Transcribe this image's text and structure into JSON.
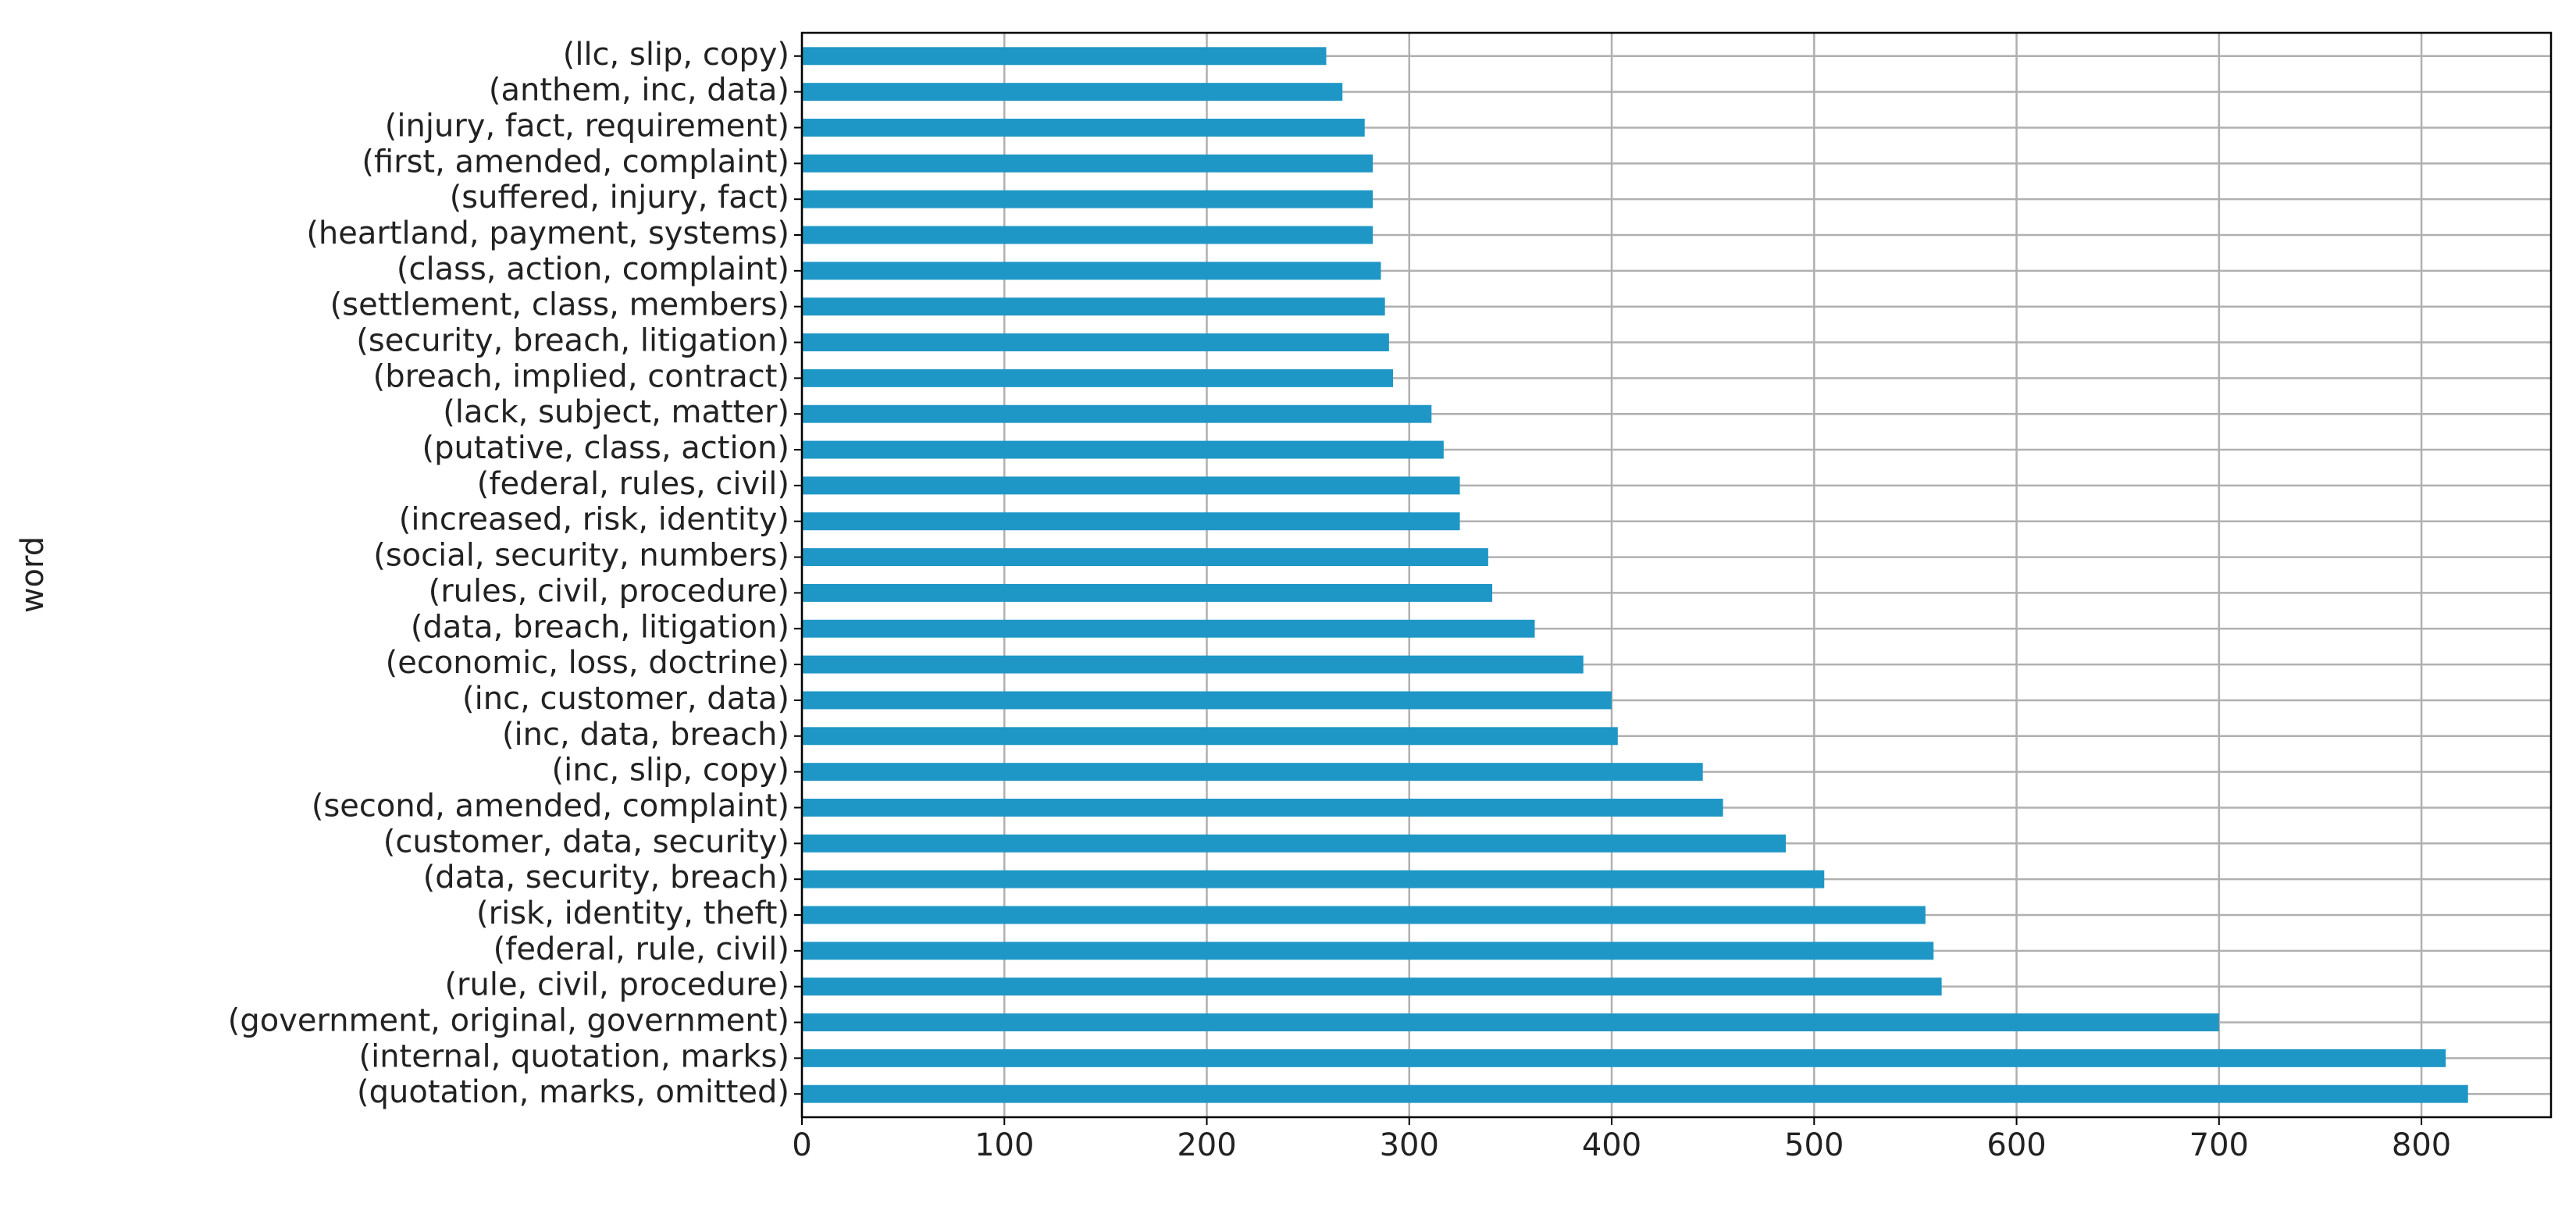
{
  "chart_data": {
    "type": "barh",
    "ylabel": "word",
    "categories": [
      "(quotation, marks, omitted)",
      "(internal, quotation, marks)",
      "(government, original, government)",
      "(rule, civil, procedure)",
      "(federal, rule, civil)",
      "(risk, identity, theft)",
      "(data, security, breach)",
      "(customer, data, security)",
      "(second, amended, complaint)",
      "(inc, slip, copy)",
      "(inc, data, breach)",
      "(inc, customer, data)",
      "(economic, loss, doctrine)",
      "(data, breach, litigation)",
      "(rules, civil, procedure)",
      "(social, security, numbers)",
      "(increased, risk, identity)",
      "(federal, rules, civil)",
      "(putative, class, action)",
      "(lack, subject, matter)",
      "(breach, implied, contract)",
      "(security, breach, litigation)",
      "(settlement, class, members)",
      "(class, action, complaint)",
      "(heartland, payment, systems)",
      "(suffered, injury, fact)",
      "(first, amended, complaint)",
      "(injury, fact, requirement)",
      "(anthem, inc, data)",
      "(llc, slip, copy)"
    ],
    "values": [
      823,
      812,
      700,
      563,
      559,
      555,
      505,
      486,
      455,
      445,
      403,
      400,
      386,
      362,
      341,
      339,
      325,
      325,
      317,
      311,
      292,
      290,
      288,
      286,
      282,
      282,
      282,
      278,
      267,
      259
    ],
    "color": "#1f97c6",
    "xlim": [
      0,
      864
    ],
    "xticks": [
      0,
      100,
      200,
      300,
      400,
      500,
      600,
      700,
      800
    ],
    "grid": true
  }
}
